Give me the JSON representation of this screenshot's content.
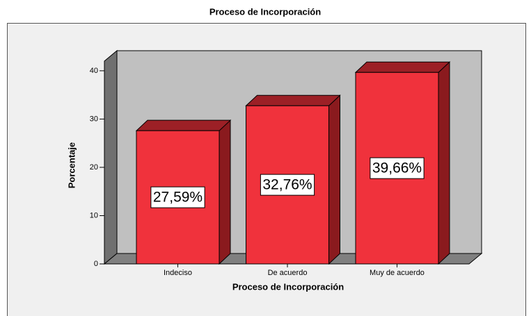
{
  "chart_data": {
    "type": "bar3d",
    "title": "Proceso de Incorporación",
    "x_label": "Proceso de Incorporación",
    "y_label": "Porcentaje",
    "categories": [
      "Indeciso",
      "De acuerdo",
      "Muy de acuerdo"
    ],
    "values": [
      27.59,
      32.76,
      39.66
    ],
    "value_labels": [
      "27,59%",
      "32,76%",
      "39,66%"
    ],
    "color": "#f0323c",
    "ylim": [
      0,
      42
    ],
    "yticks": [
      0,
      10,
      20,
      30,
      40
    ]
  }
}
